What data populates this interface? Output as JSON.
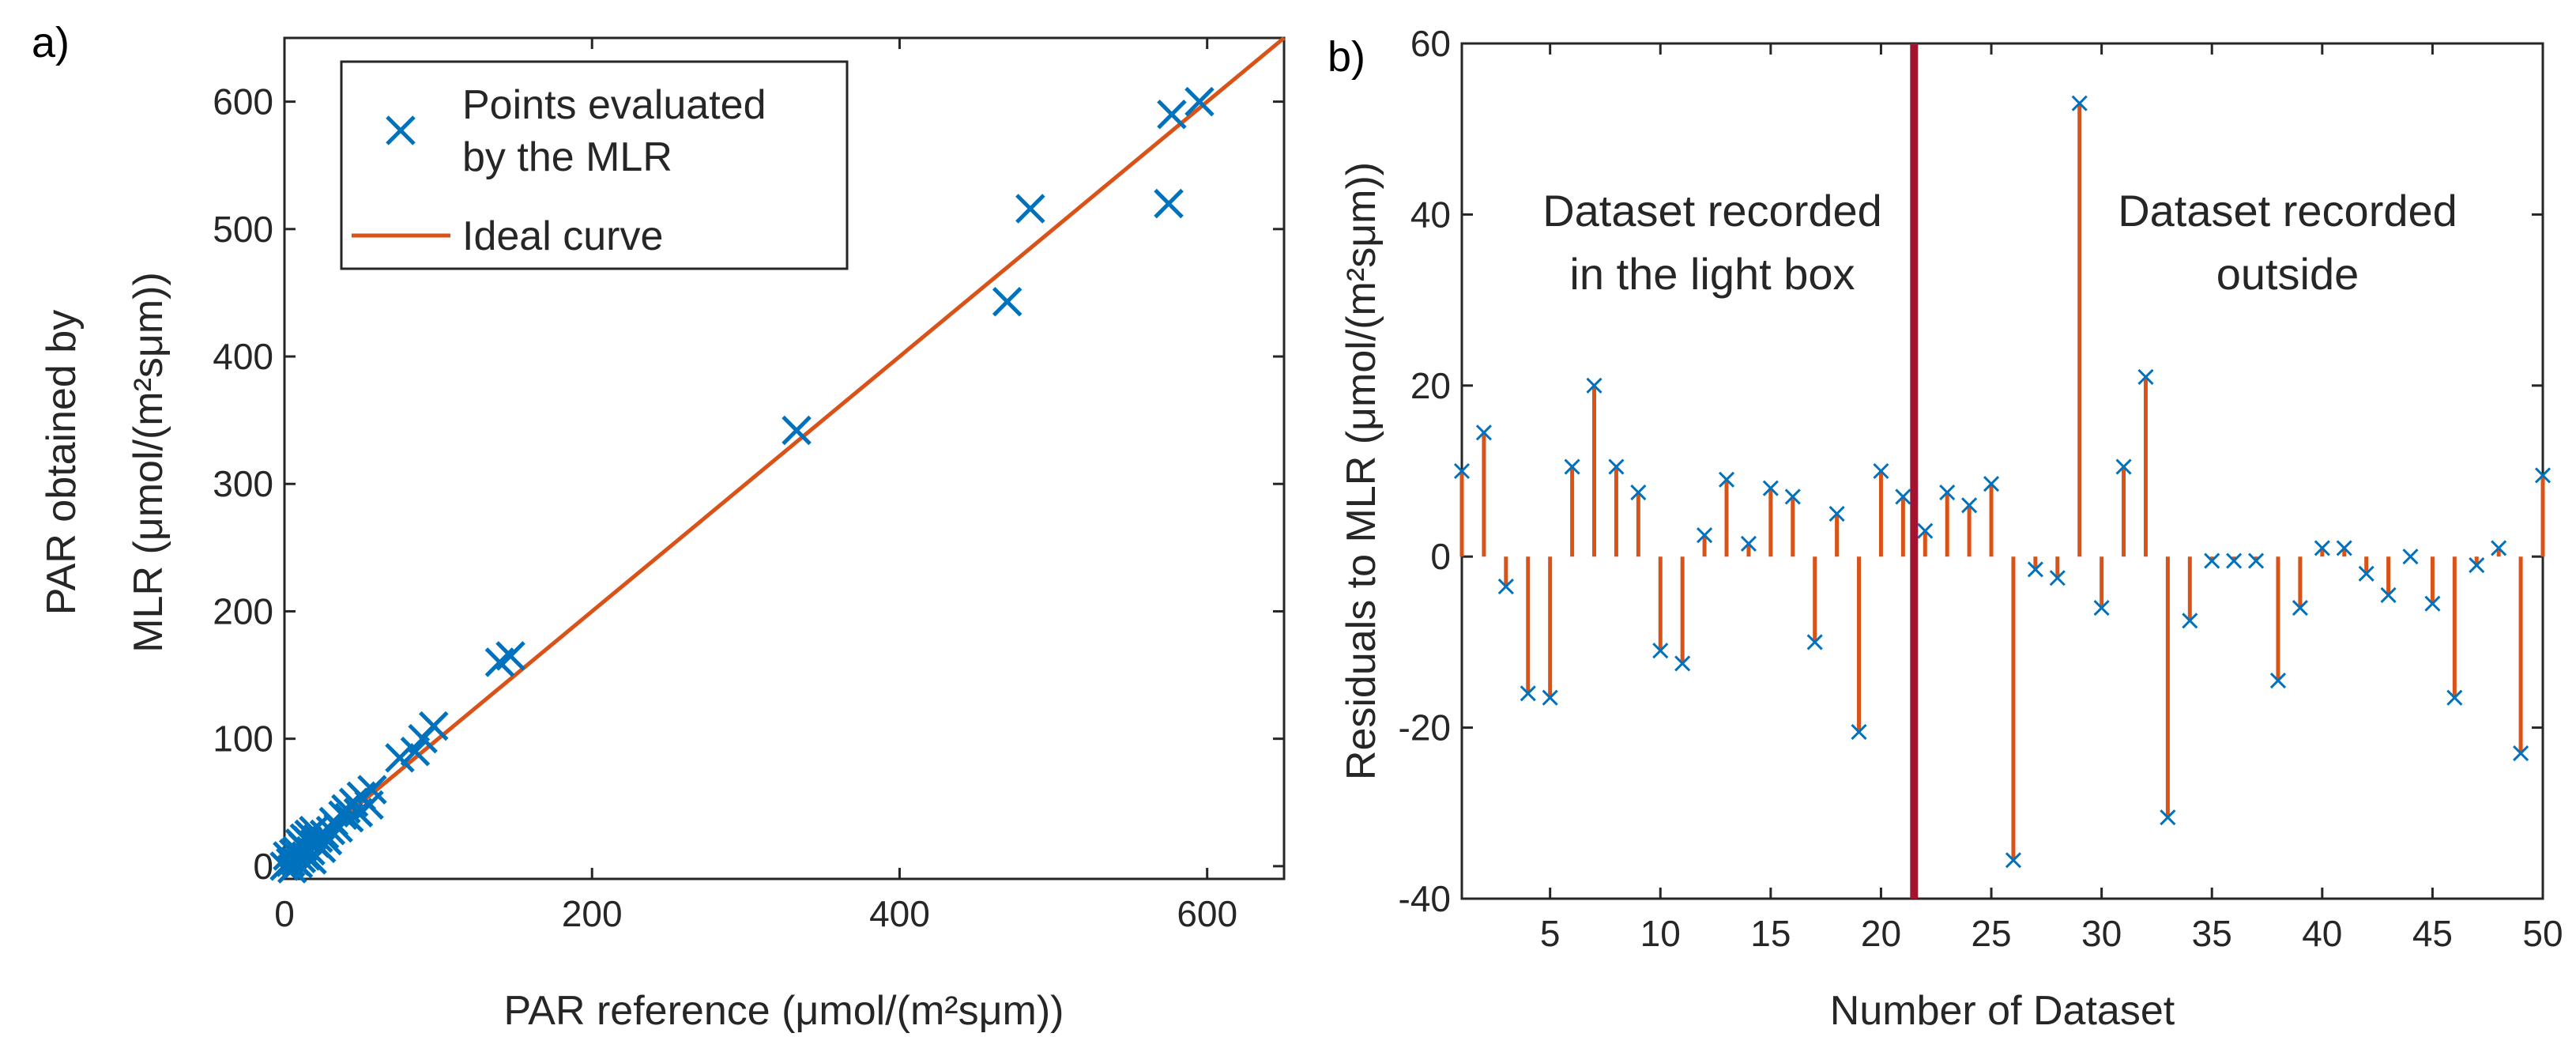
{
  "colors": {
    "marker": "#0072BD",
    "line": "#D95319",
    "divider": "#A2142F",
    "axis": "#262626"
  },
  "panels": {
    "a": {
      "label": "a)",
      "xlabel": "PAR reference (μmol/(m²sμm))",
      "ylabel_line1": "PAR obtained by",
      "ylabel_line2": "MLR (μmol/(m²sμm))",
      "legend": {
        "marker_line1": "Points evaluated",
        "marker_line2": "by the MLR",
        "line": "Ideal curve"
      }
    },
    "b": {
      "label": "b)",
      "xlabel": "Number of Dataset",
      "ylabel": "Residuals to MLR (μmol/(m²sμm))",
      "annot_left_1": "Dataset recorded",
      "annot_left_2": "in the light box",
      "annot_right_1": "Dataset recorded",
      "annot_right_2": "outside"
    }
  },
  "chart_data": [
    {
      "type": "scatter",
      "panel": "a",
      "xlabel": "PAR reference (μmol/(m²sμm))",
      "ylabel": "PAR obtained by MLR (μmol/(m²sμm))",
      "xlim": [
        0,
        650
      ],
      "ylim": [
        -10,
        650
      ],
      "xticks": [
        0,
        200,
        400,
        600
      ],
      "yticks": [
        0,
        100,
        200,
        300,
        400,
        500,
        600
      ],
      "legend_position": "top-left",
      "series": [
        {
          "name": "Points evaluated by the MLR",
          "marker": "x",
          "points": [
            [
              0,
              0
            ],
            [
              2,
              8
            ],
            [
              4,
              3
            ],
            [
              5,
              -2
            ],
            [
              6,
              10
            ],
            [
              7,
              4
            ],
            [
              8,
              12
            ],
            [
              9,
              2
            ],
            [
              10,
              18
            ],
            [
              11,
              6
            ],
            [
              12,
              15
            ],
            [
              13,
              22
            ],
            [
              14,
              8
            ],
            [
              15,
              20
            ],
            [
              16,
              25
            ],
            [
              17,
              12
            ],
            [
              18,
              5
            ],
            [
              19,
              28
            ],
            [
              20,
              18
            ],
            [
              22,
              22
            ],
            [
              24,
              14
            ],
            [
              26,
              25
            ],
            [
              28,
              20
            ],
            [
              30,
              28
            ],
            [
              32,
              35
            ],
            [
              35,
              30
            ],
            [
              38,
              40
            ],
            [
              40,
              45
            ],
            [
              42,
              38
            ],
            [
              45,
              50
            ],
            [
              48,
              42
            ],
            [
              50,
              55
            ],
            [
              55,
              48
            ],
            [
              57,
              60
            ],
            [
              75,
              85
            ],
            [
              85,
              90
            ],
            [
              90,
              100
            ],
            [
              97,
              110
            ],
            [
              140,
              160
            ],
            [
              147,
              165
            ],
            [
              333,
              342
            ],
            [
              470,
              443
            ],
            [
              485,
              516
            ],
            [
              575,
              520
            ],
            [
              577,
              590
            ],
            [
              595,
              600
            ]
          ]
        },
        {
          "name": "Ideal curve",
          "type": "line",
          "points": [
            [
              0,
              0
            ],
            [
              650,
              650
            ]
          ]
        }
      ]
    },
    {
      "type": "stem",
      "panel": "b",
      "xlabel": "Number of Dataset",
      "ylabel": "Residuals to MLR (μmol/(m²sμm))",
      "xlim": [
        1,
        50
      ],
      "ylim": [
        -40,
        60
      ],
      "xticks": [
        5,
        10,
        15,
        20,
        25,
        30,
        35,
        40,
        45,
        50
      ],
      "yticks": [
        -40,
        -20,
        0,
        20,
        40,
        60
      ],
      "divider_x": 21.5,
      "x": [
        1,
        2,
        3,
        4,
        5,
        6,
        7,
        8,
        9,
        10,
        11,
        12,
        13,
        14,
        15,
        16,
        17,
        18,
        19,
        20,
        21,
        22,
        23,
        24,
        25,
        26,
        27,
        28,
        29,
        30,
        31,
        32,
        33,
        34,
        35,
        36,
        37,
        38,
        39,
        40,
        41,
        42,
        43,
        44,
        45,
        46,
        47,
        48,
        49,
        50
      ],
      "values": [
        10,
        14.5,
        -3.5,
        -16,
        -16.5,
        10.5,
        20,
        10.5,
        7.5,
        -11,
        -12.5,
        2.5,
        9,
        1.5,
        8,
        7,
        -10,
        5,
        -20.5,
        10,
        7,
        3,
        7.5,
        6,
        8.5,
        -35.5,
        -1.5,
        -2.5,
        53,
        -6,
        10.5,
        21,
        -30.5,
        -7.5,
        -0.5,
        -0.5,
        -0.5,
        -14.5,
        -6,
        1,
        1,
        -2,
        -4.5,
        0,
        -5.5,
        -16.5,
        -1,
        1,
        -23,
        9.5
      ]
    }
  ]
}
